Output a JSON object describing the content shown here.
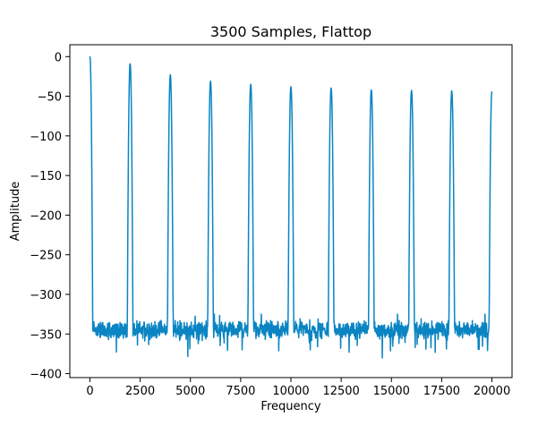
{
  "chart_data": {
    "type": "line",
    "title": "3500 Samples, Flattop",
    "xlabel": "Frequency",
    "ylabel": "Amplitude",
    "xlim": [
      -1000,
      21000
    ],
    "ylim": [
      -405,
      15
    ],
    "grid": false,
    "line_color": "#0a84c2",
    "x_ticks": [
      0,
      2500,
      5000,
      7500,
      10000,
      12500,
      15000,
      17500,
      20000
    ],
    "x_tick_labels": [
      "0",
      "2500",
      "5000",
      "7500",
      "10000",
      "12500",
      "15000",
      "17500",
      "20000"
    ],
    "y_ticks": [
      0,
      -50,
      -100,
      -150,
      -200,
      -250,
      -300,
      -350,
      -400
    ],
    "y_tick_labels": [
      "0",
      "−50",
      "−100",
      "−150",
      "−200",
      "−250",
      "−300",
      "−350",
      "−400"
    ],
    "series": [
      {
        "peaks": [
          {
            "x": 0,
            "y": 0
          },
          {
            "x": 2000,
            "y": -9
          },
          {
            "x": 4000,
            "y": -23
          },
          {
            "x": 6000,
            "y": -31
          },
          {
            "x": 8000,
            "y": -35
          },
          {
            "x": 10000,
            "y": -38
          },
          {
            "x": 12000,
            "y": -40
          },
          {
            "x": 14000,
            "y": -42
          },
          {
            "x": 16000,
            "y": -43
          },
          {
            "x": 18000,
            "y": -44
          },
          {
            "x": 20000,
            "y": -44
          }
        ],
        "noise_floor": -345,
        "noise_min": -385,
        "noise_max": -325
      }
    ]
  }
}
